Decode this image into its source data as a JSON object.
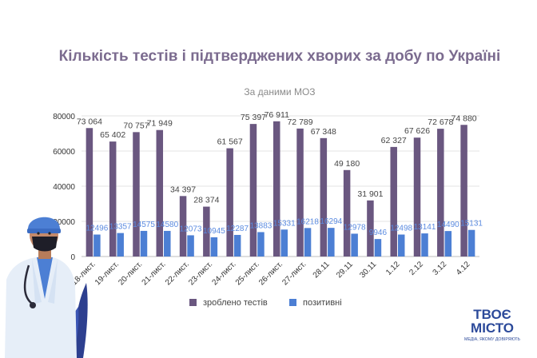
{
  "chart_data": {
    "type": "bar",
    "title": "Кількість тестів і підтверджених хворих за добу по Україні",
    "subtitle": "За даними МОЗ",
    "categories": [
      "18-лист.",
      "19-лист.",
      "20-лист.",
      "21-лист.",
      "22-лист.",
      "23-лист.",
      "24-лист.",
      "25-лист.",
      "26-лист.",
      "27-лист.",
      "28.11",
      "29.11",
      "30.11",
      "1.12",
      "2.12",
      "3.12",
      "4.12"
    ],
    "series": [
      {
        "name": "зроблено тестів",
        "color": "#6a5780",
        "values": [
          73064,
          65402,
          70757,
          71949,
          34397,
          28374,
          61567,
          75397,
          76911,
          72789,
          67348,
          49180,
          31901,
          62327,
          67626,
          72678,
          74880
        ]
      },
      {
        "name": "позитивні",
        "color": "#4c7fd4",
        "values": [
          12496,
          13357,
          14575,
          14580,
          12073,
          10945,
          12287,
          13883,
          15331,
          16218,
          16294,
          12978,
          9946,
          12498,
          13141,
          14490,
          15131
        ]
      }
    ],
    "value_labels": [
      [
        "73 064",
        "65 402",
        "70 757",
        "71 949",
        "34 397",
        "28 374",
        "61 567",
        "75 397",
        "76 911",
        "72 789",
        "67 348",
        "49 180",
        "31 901",
        "62 327",
        "67 626",
        "72 678",
        "74 880"
      ],
      [
        "12496",
        "13357",
        "14575",
        "14580",
        "12073",
        "10945",
        "12287",
        "13883",
        "15331",
        "16218",
        "16294",
        "12978",
        "9946",
        "12498",
        "13141",
        "14490",
        "15131"
      ]
    ],
    "y_ticks": [
      "0",
      "20000",
      "40000",
      "60000",
      "80000"
    ],
    "ylim": [
      0,
      80000
    ],
    "grid": true,
    "legend_position": "bottom"
  },
  "logo": {
    "line1": "ТВОЄ",
    "line2": "МІСТО",
    "tagline": "МЕДІА, ЯКОМУ ДОВІРЯЮТЬ"
  },
  "colors": {
    "title": "#7b6b8f",
    "tests": "#6a5780",
    "positive": "#4c7fd4",
    "logo_blue": "#2c4a9a"
  }
}
